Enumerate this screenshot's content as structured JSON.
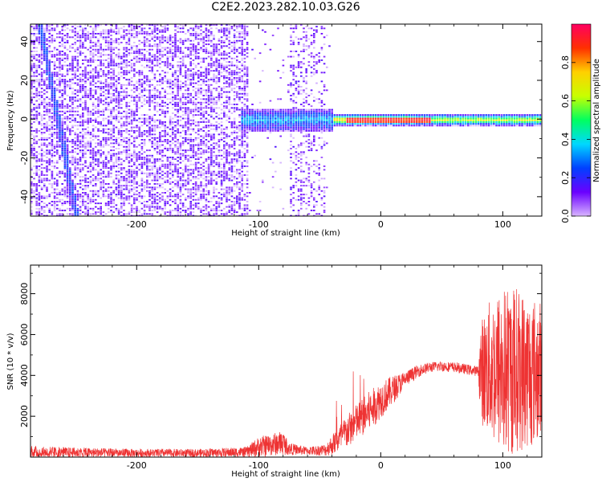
{
  "chart_data": [
    {
      "type": "heatmap",
      "title": "C2E2.2023.282.10.03.G26",
      "xlabel": "Height of straight line (km)",
      "ylabel": "Frequency (Hz)",
      "xlim": [
        -287,
        132
      ],
      "ylim": [
        -50,
        49
      ],
      "xticks": [
        -200,
        -100,
        0,
        100
      ],
      "yticks": [
        -40,
        -20,
        0,
        20,
        40
      ],
      "grid": false,
      "colorbar": {
        "label": "Normalized spectral amplitude",
        "range": [
          0,
          1
        ],
        "ticks": [
          0.0,
          0.2,
          0.4,
          0.6,
          0.8
        ],
        "colormap": [
          "#d8b4ff",
          "#6a00ff",
          "#0040ff",
          "#00d8ff",
          "#00ff60",
          "#c8ff00",
          "#ffd000",
          "#ff3000",
          "#ff0060"
        ]
      },
      "features": [
        {
          "name": "",
          "region": "broadband noise",
          "x_range": [
            -287,
            -110
          ],
          "y_range": [
            -50,
            49
          ],
          "amplitude": 0.1
        },
        {
          "name": "",
          "region": "sparse noise",
          "x_range": [
            -110,
            -42
          ],
          "y_range": [
            -50,
            49
          ],
          "amplitude": 0.05
        },
        {
          "name": "",
          "region": "carrier",
          "x_range": [
            -115,
            132
          ],
          "y_center": 0,
          "amplitude_peak": 0.95
        },
        {
          "name": "",
          "region": "diagonal streak",
          "x_start": -280,
          "x_end": -250,
          "y_start": 49,
          "y_end": -50,
          "amplitude": 0.25
        }
      ]
    },
    {
      "type": "line",
      "title": "",
      "xlabel": "Height of straight line (km)",
      "ylabel": "SNR (10 * v/v)",
      "xlim": [
        -287,
        132
      ],
      "ylim": [
        0,
        9400
      ],
      "xticks": [
        -200,
        -100,
        0,
        100
      ],
      "yticks": [
        2000,
        4000,
        6000,
        8000
      ],
      "grid": false,
      "series": [
        {
          "name": "",
          "color": "#ee3333",
          "envelope": {
            "x": [
              -287,
              -250,
              -200,
              -150,
              -110,
              -100,
              -80,
              -75,
              -60,
              -45,
              -40,
              -30,
              -20,
              -10,
              0,
              10,
              20,
              30,
              40,
              50,
              60,
              70,
              80,
              82,
              90,
              100,
              110,
              120,
              132
            ],
            "mean": [
              250,
              220,
              200,
              200,
              250,
              500,
              700,
              400,
              300,
              350,
              600,
              1100,
              1700,
              2200,
              2800,
              3300,
              3800,
              4200,
              4400,
              4450,
              4400,
              4300,
              4200,
              4200,
              4300,
              4200,
              4300,
              4200,
              4200
            ],
            "spread": [
              300,
              250,
              200,
              200,
              250,
              500,
              600,
              300,
              200,
              300,
              500,
              800,
              900,
              1000,
              900,
              700,
              400,
              300,
              250,
              250,
              250,
              250,
              250,
              2500,
              3500,
              4200,
              4200,
              3800,
              3500
            ]
          }
        }
      ]
    }
  ]
}
